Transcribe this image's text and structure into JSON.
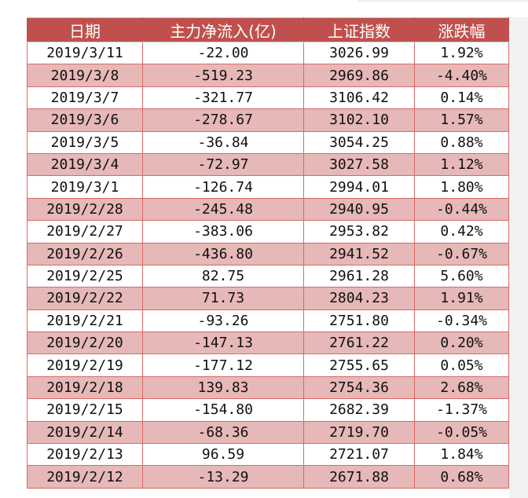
{
  "table": {
    "headers": [
      "日期",
      "主力净流入(亿)",
      "上证指数",
      "涨跌幅"
    ],
    "rows": [
      [
        "2019/3/11",
        "-22.00",
        "3026.99",
        "1.92%"
      ],
      [
        "2019/3/8",
        "-519.23",
        "2969.86",
        "-4.40%"
      ],
      [
        "2019/3/7",
        "-321.77",
        "3106.42",
        "0.14%"
      ],
      [
        "2019/3/6",
        "-278.67",
        "3102.10",
        "1.57%"
      ],
      [
        "2019/3/5",
        "-36.84",
        "3054.25",
        "0.88%"
      ],
      [
        "2019/3/4",
        "-72.97",
        "3027.58",
        "1.12%"
      ],
      [
        "2019/3/1",
        "-126.74",
        "2994.01",
        "1.80%"
      ],
      [
        "2019/2/28",
        "-245.48",
        "2940.95",
        "-0.44%"
      ],
      [
        "2019/2/27",
        "-383.06",
        "2953.82",
        "0.42%"
      ],
      [
        "2019/2/26",
        "-436.80",
        "2941.52",
        "-0.67%"
      ],
      [
        "2019/2/25",
        "82.75",
        "2961.28",
        "5.60%"
      ],
      [
        "2019/2/22",
        "71.73",
        "2804.23",
        "1.91%"
      ],
      [
        "2019/2/21",
        "-93.26",
        "2751.80",
        "-0.34%"
      ],
      [
        "2019/2/20",
        "-147.13",
        "2761.22",
        "0.20%"
      ],
      [
        "2019/2/19",
        "-177.12",
        "2755.65",
        "0.05%"
      ],
      [
        "2019/2/18",
        "139.83",
        "2754.36",
        "2.68%"
      ],
      [
        "2019/2/15",
        "-154.80",
        "2682.39",
        "-1.37%"
      ],
      [
        "2019/2/14",
        "-68.36",
        "2719.70",
        "-0.05%"
      ],
      [
        "2019/2/13",
        "96.59",
        "2721.07",
        "1.84%"
      ],
      [
        "2019/2/12",
        "-13.29",
        "2671.88",
        "0.68%"
      ]
    ]
  },
  "colors": {
    "header": "#c0504d",
    "alt_row": "#e6b8b7",
    "border": "#d9696a"
  }
}
